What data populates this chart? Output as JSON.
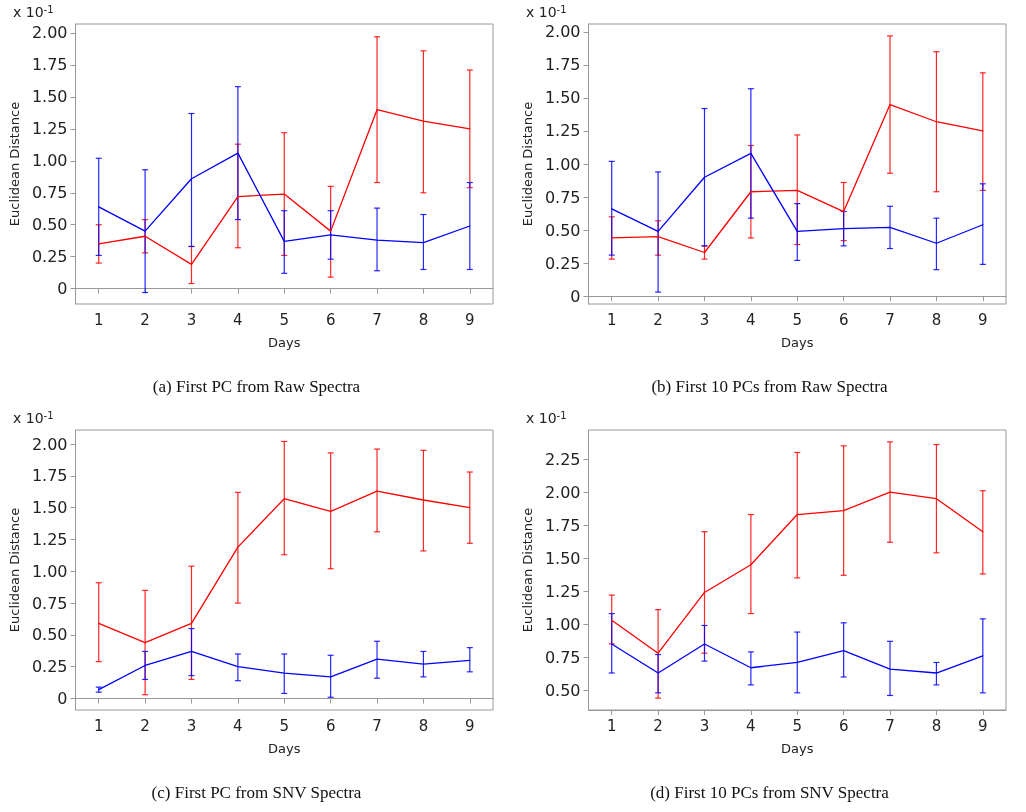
{
  "chart_data": [
    {
      "type": "line",
      "title": "(a) First PC from Raw Spectra",
      "xlabel": "Days",
      "ylabel": "Euclidean Distance",
      "annotations": [
        "x 10$^{-1}$"
      ],
      "categories": [
        "1",
        "2",
        "3",
        "4",
        "5",
        "6",
        "7",
        "8",
        "9"
      ],
      "marker": "none",
      "line_style": "solid",
      "ylim": [
        -0.12,
        2.07
      ],
      "yticks": [
        0,
        0.25,
        {
          "value": 0.5,
          "label": "0.50"
        },
        0.75,
        {
          "value": 1,
          "label": "1.00"
        },
        1.25,
        {
          "value": 1.5,
          "label": "1.50"
        },
        1.75,
        {
          "value": 2,
          "label": "2.00"
        }
      ],
      "series": [
        {
          "color": "#ff0000",
          "values": [
            0.35,
            0.41,
            0.19,
            0.72,
            0.74,
            0.45,
            1.4,
            1.31,
            1.25
          ],
          "errors": [
            [
              0.2,
              0.5
            ],
            [
              0.28,
              0.54
            ],
            [
              0.04,
              0.33
            ],
            [
              0.32,
              1.13
            ],
            [
              0.26,
              1.22
            ],
            [
              0.09,
              0.8
            ],
            [
              0.83,
              1.97
            ],
            [
              0.75,
              1.86
            ],
            [
              0.79,
              1.71
            ]
          ]
        },
        {
          "color": "#0000ff",
          "values": [
            0.64,
            0.45,
            0.86,
            1.06,
            0.37,
            0.42,
            0.38,
            0.36,
            0.49
          ],
          "errors": [
            [
              0.26,
              1.02
            ],
            [
              -0.03,
              0.93
            ],
            [
              0.33,
              1.37
            ],
            [
              0.54,
              1.58
            ],
            [
              0.12,
              0.61
            ],
            [
              0.23,
              0.61
            ],
            [
              0.14,
              0.63
            ],
            [
              0.15,
              0.58
            ],
            [
              0.15,
              0.83
            ]
          ]
        }
      ]
    },
    {
      "type": "line",
      "title": "(b) First 10 PCs from Raw Spectra",
      "xlabel": "Days",
      "ylabel": "Euclidean Distance",
      "annotations": [
        "x 10$^{-1}$"
      ],
      "categories": [
        "1",
        "2",
        "3",
        "4",
        "5",
        "6",
        "7",
        "8",
        "9"
      ],
      "marker": "none",
      "line_style": "solid",
      "ylim": [
        -0.06,
        2.06
      ],
      "yticks": [
        0,
        0.25,
        {
          "value": 0.5,
          "label": "0.50"
        },
        0.75,
        {
          "value": 1,
          "label": "1.00"
        },
        1.25,
        {
          "value": 1.5,
          "label": "1.50"
        },
        1.75,
        {
          "value": 2,
          "label": "2.00"
        }
      ],
      "series": [
        {
          "color": "#ff0000",
          "values": [
            0.44,
            0.45,
            0.33,
            0.79,
            0.8,
            0.64,
            1.45,
            1.32,
            1.25
          ],
          "errors": [
            [
              0.28,
              0.6
            ],
            [
              0.31,
              0.57
            ],
            [
              0.28,
              0.38
            ],
            [
              0.44,
              1.14
            ],
            [
              0.39,
              1.22
            ],
            [
              0.42,
              0.86
            ],
            [
              0.93,
              1.97
            ],
            [
              0.79,
              1.85
            ],
            [
              0.8,
              1.69
            ]
          ]
        },
        {
          "color": "#0000ff",
          "values": [
            0.66,
            0.49,
            0.9,
            1.08,
            0.49,
            0.51,
            0.52,
            0.4,
            0.54
          ],
          "errors": [
            [
              0.31,
              1.02
            ],
            [
              0.03,
              0.94
            ],
            [
              0.38,
              1.42
            ],
            [
              0.59,
              1.57
            ],
            [
              0.27,
              0.7
            ],
            [
              0.38,
              0.64
            ],
            [
              0.36,
              0.68
            ],
            [
              0.2,
              0.59
            ],
            [
              0.24,
              0.85
            ]
          ]
        }
      ]
    },
    {
      "type": "line",
      "title": "(c) First PC from SNV Spectra",
      "xlabel": "Days",
      "ylabel": "Euclidean Distance",
      "annotations": [
        "x 10$^{-1}$"
      ],
      "categories": [
        "1",
        "2",
        "3",
        "4",
        "5",
        "6",
        "7",
        "8",
        "9"
      ],
      "marker": "none",
      "line_style": "solid",
      "ylim": [
        -0.09,
        2.11
      ],
      "yticks": [
        0,
        0.25,
        {
          "value": 0.5,
          "label": "0.50"
        },
        0.75,
        {
          "value": 1,
          "label": "1.00"
        },
        1.25,
        {
          "value": 1.5,
          "label": "1.50"
        },
        1.75,
        {
          "value": 2,
          "label": "2.00"
        }
      ],
      "series": [
        {
          "color": "#ff0000",
          "values": [
            0.59,
            0.44,
            0.59,
            1.19,
            1.57,
            1.47,
            1.63,
            1.56,
            1.5
          ],
          "errors": [
            [
              0.29,
              0.91
            ],
            [
              0.03,
              0.85
            ],
            [
              0.15,
              1.04
            ],
            [
              0.75,
              1.62
            ],
            [
              1.13,
              2.02
            ],
            [
              1.02,
              1.93
            ],
            [
              1.31,
              1.96
            ],
            [
              1.16,
              1.95
            ],
            [
              1.22,
              1.78
            ]
          ]
        },
        {
          "color": "#0000ff",
          "values": [
            0.07,
            0.26,
            0.37,
            0.25,
            0.2,
            0.17,
            0.31,
            0.27,
            0.3
          ],
          "errors": [
            [
              0.05,
              0.09
            ],
            [
              0.15,
              0.37
            ],
            [
              0.18,
              0.55
            ],
            [
              0.14,
              0.35
            ],
            [
              0.04,
              0.35
            ],
            [
              0.01,
              0.34
            ],
            [
              0.16,
              0.45
            ],
            [
              0.17,
              0.37
            ],
            [
              0.21,
              0.4
            ]
          ]
        }
      ]
    },
    {
      "type": "line",
      "title": "(d) First 10 PCs from SNV Spectra",
      "xlabel": "Days",
      "ylabel": "Euclidean Distance",
      "annotations": [
        "x 10$^{-1}$"
      ],
      "categories": [
        "1",
        "2",
        "3",
        "4",
        "5",
        "6",
        "7",
        "8",
        "9"
      ],
      "marker": "none",
      "line_style": "solid",
      "ylim": [
        0.35,
        2.47
      ],
      "yticks": [
        {
          "value": 0.5,
          "label": "0.50"
        },
        0.75,
        {
          "value": 1,
          "label": "1.00"
        },
        1.25,
        {
          "value": 1.5,
          "label": "1.50"
        },
        1.75,
        {
          "value": 2,
          "label": "2.00"
        },
        2.25
      ],
      "series": [
        {
          "color": "#ff0000",
          "values": [
            1.03,
            0.78,
            1.24,
            1.45,
            1.83,
            1.86,
            2.0,
            1.95,
            1.7
          ],
          "errors": [
            [
              0.85,
              1.22
            ],
            [
              0.44,
              1.11
            ],
            [
              0.78,
              1.7
            ],
            [
              1.08,
              1.83
            ],
            [
              1.35,
              2.3
            ],
            [
              1.37,
              2.35
            ],
            [
              1.62,
              2.38
            ],
            [
              1.54,
              2.36
            ],
            [
              1.38,
              2.01
            ]
          ]
        },
        {
          "color": "#0000ff",
          "values": [
            0.85,
            0.63,
            0.85,
            0.67,
            0.71,
            0.8,
            0.66,
            0.63,
            0.76
          ],
          "errors": [
            [
              0.63,
              1.08
            ],
            [
              0.48,
              0.77
            ],
            [
              0.72,
              0.99
            ],
            [
              0.54,
              0.79
            ],
            [
              0.48,
              0.94
            ],
            [
              0.6,
              1.01
            ],
            [
              0.46,
              0.87
            ],
            [
              0.54,
              0.71
            ],
            [
              0.48,
              1.04
            ]
          ]
        }
      ]
    }
  ]
}
